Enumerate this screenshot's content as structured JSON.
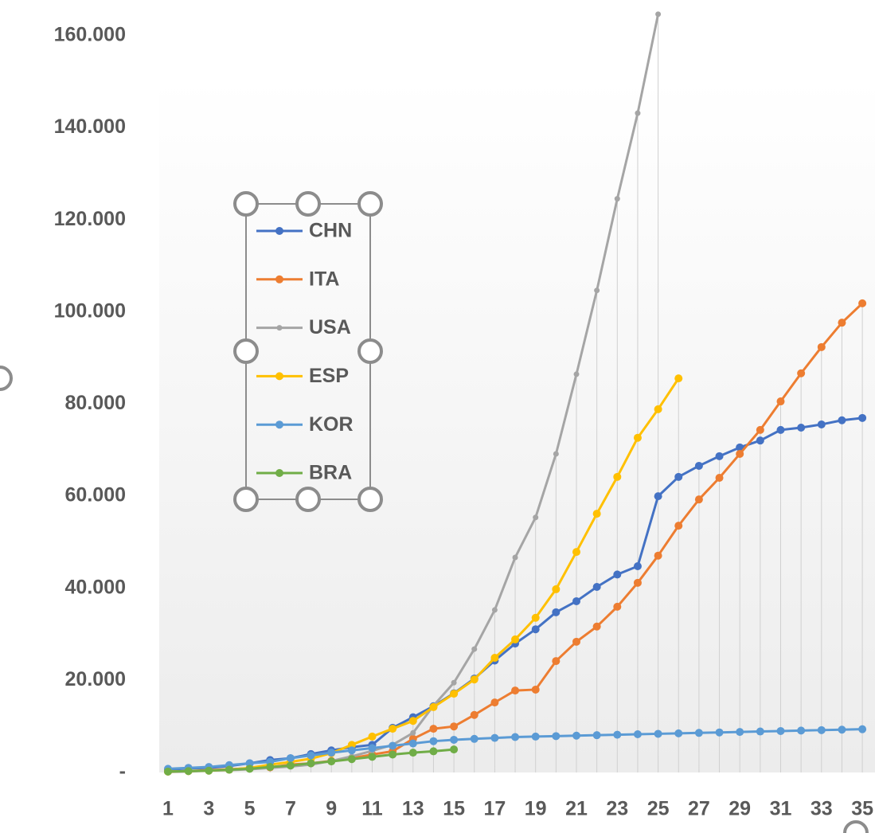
{
  "chart_data": {
    "type": "line",
    "categories": [
      1,
      null,
      3,
      null,
      5,
      null,
      7,
      null,
      9,
      null,
      11,
      null,
      13,
      null,
      15,
      null,
      17,
      null,
      19,
      null,
      21,
      null,
      23,
      null,
      25,
      null,
      27,
      null,
      29,
      null,
      31,
      null,
      33,
      null,
      35
    ],
    "series": [
      {
        "name": "CHN",
        "color": "#4472c4",
        "values": [
          600,
          900,
          1000,
          1400,
          2000,
          2700,
          3100,
          4000,
          4800,
          5500,
          6000,
          9700,
          12000,
          14400,
          17200,
          20400,
          24300,
          28000,
          31100,
          34800,
          37200,
          40300,
          43000,
          44800,
          60000,
          64200,
          66600,
          68700,
          70600,
          72100,
          74400,
          74900,
          75600,
          76500,
          77000
        ]
      },
      {
        "name": "ITA",
        "color": "#ed7d31",
        "values": [
          200,
          300,
          500,
          700,
          900,
          1100,
          1700,
          2000,
          2500,
          3100,
          3900,
          4600,
          7300,
          9500,
          10000,
          12500,
          15200,
          17800,
          18000,
          24200,
          28400,
          31700,
          36000,
          41200,
          47100,
          53600,
          59300,
          64000,
          69200,
          74400,
          80600,
          86700,
          92400,
          97700,
          101900
        ]
      },
      {
        "name": "USA",
        "color": "#a5a5a5",
        "values": [
          100,
          200,
          400,
          500,
          700,
          1000,
          1300,
          1700,
          2500,
          3500,
          4700,
          6000,
          8600,
          14500,
          19500,
          26800,
          35300,
          46700,
          55400,
          69200,
          86500,
          104700,
          124600,
          143200,
          164700,
          null,
          null,
          null,
          null,
          null,
          null,
          null,
          null,
          null,
          null
        ]
      },
      {
        "name": "ESP",
        "color": "#ffc000",
        "values": [
          200,
          300,
          400,
          600,
          1000,
          1700,
          2300,
          3000,
          4200,
          6000,
          7800,
          9500,
          11200,
          14200,
          17100,
          20200,
          24900,
          28900,
          33600,
          39800,
          47900,
          56200,
          64200,
          72700,
          78900,
          85600,
          null,
          null,
          null,
          null,
          null,
          null,
          null,
          null,
          null
        ]
      },
      {
        "name": "KOR",
        "color": "#5b9bd5",
        "values": [
          800,
          1000,
          1200,
          1600,
          2000,
          2300,
          3100,
          3700,
          4300,
          4800,
          5300,
          5800,
          6300,
          6800,
          7100,
          7300,
          7500,
          7700,
          7800,
          7900,
          8000,
          8100,
          8200,
          8300,
          8400,
          8500,
          8600,
          8700,
          8800,
          8900,
          9000,
          9100,
          9200,
          9300,
          9400
        ]
      },
      {
        "name": "BRA",
        "color": "#70ad47",
        "values": [
          200,
          300,
          400,
          600,
          800,
          1200,
          1500,
          2000,
          2400,
          2900,
          3400,
          3900,
          4300,
          4600,
          5000,
          null,
          null,
          null,
          null,
          null,
          null,
          null,
          null,
          null,
          null,
          null,
          null,
          null,
          null,
          null,
          null,
          null,
          null,
          null,
          null
        ]
      }
    ],
    "ylim": [
      0,
      160000
    ],
    "yticks": [
      {
        "value": 0,
        "label": "-"
      },
      {
        "value": 20000,
        "label": "20.000"
      },
      {
        "value": 40000,
        "label": "40.000"
      },
      {
        "value": 60000,
        "label": "60.000"
      },
      {
        "value": 80000,
        "label": "80.000"
      },
      {
        "value": 100000,
        "label": "100.000"
      },
      {
        "value": 120000,
        "label": "120.000"
      },
      {
        "value": 140000,
        "label": "140.000"
      },
      {
        "value": 160000,
        "label": "160.000"
      }
    ],
    "grid": false
  }
}
